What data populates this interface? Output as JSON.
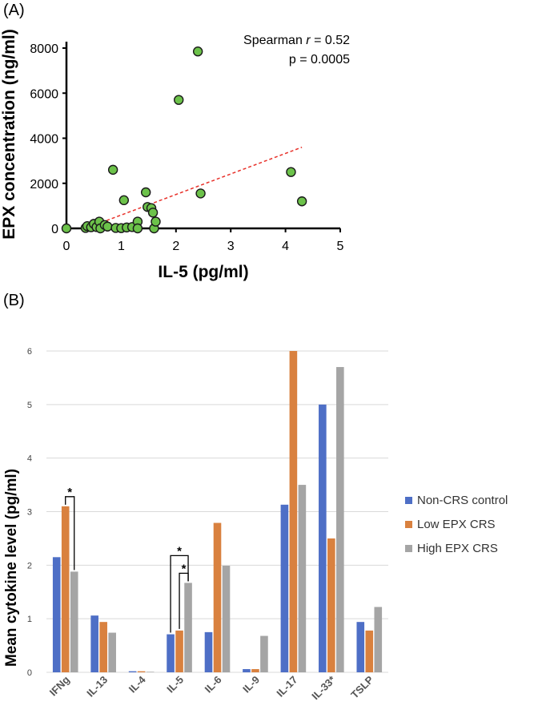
{
  "panels": {
    "a_label": "(A)",
    "b_label": "(B)"
  },
  "chart_data": [
    {
      "type": "scatter",
      "title": "",
      "xlabel": "IL-5 (pg/ml)",
      "ylabel": "EPX concentration (ng/ml)",
      "xlim": [
        0,
        5
      ],
      "ylim": [
        0,
        8000
      ],
      "xticks": [
        0,
        1,
        2,
        3,
        4,
        5
      ],
      "yticks": [
        0,
        2000,
        4000,
        6000,
        8000
      ],
      "marker_color": "#6cc24a",
      "trendline_color": "#e8312a",
      "trendline": {
        "x": [
          0.35,
          4.3
        ],
        "y": [
          0,
          3600
        ]
      },
      "annotation": {
        "line1_prefix": "Spearman ",
        "line1_italic": "r",
        "line1_suffix": " = 0.52",
        "line2": "p = 0.0005"
      },
      "points": [
        {
          "x": 0.0,
          "y": 0
        },
        {
          "x": 0.35,
          "y": 20
        },
        {
          "x": 0.38,
          "y": 100
        },
        {
          "x": 0.45,
          "y": 50
        },
        {
          "x": 0.5,
          "y": 200
        },
        {
          "x": 0.55,
          "y": 60
        },
        {
          "x": 0.6,
          "y": 300
        },
        {
          "x": 0.62,
          "y": 0
        },
        {
          "x": 0.7,
          "y": 150
        },
        {
          "x": 0.75,
          "y": 80
        },
        {
          "x": 0.85,
          "y": 2600
        },
        {
          "x": 0.9,
          "y": 20
        },
        {
          "x": 1.0,
          "y": 10
        },
        {
          "x": 1.05,
          "y": 1250
        },
        {
          "x": 1.1,
          "y": 40
        },
        {
          "x": 1.2,
          "y": 60
        },
        {
          "x": 1.3,
          "y": 300
        },
        {
          "x": 1.3,
          "y": 0
        },
        {
          "x": 1.45,
          "y": 1600
        },
        {
          "x": 1.48,
          "y": 950
        },
        {
          "x": 1.55,
          "y": 900
        },
        {
          "x": 1.58,
          "y": 700
        },
        {
          "x": 1.6,
          "y": 0
        },
        {
          "x": 1.63,
          "y": 300
        },
        {
          "x": 2.05,
          "y": 5700
        },
        {
          "x": 2.4,
          "y": 7850
        },
        {
          "x": 2.45,
          "y": 1550
        },
        {
          "x": 4.1,
          "y": 2500
        },
        {
          "x": 4.3,
          "y": 1200
        }
      ]
    },
    {
      "type": "bar",
      "title": "",
      "xlabel": "",
      "ylabel": "Mean cytokine level (pg/ml)",
      "ylim": [
        0,
        6
      ],
      "yticks": [
        0,
        1,
        2,
        3,
        4,
        5,
        6
      ],
      "grid": true,
      "legend_position": "right",
      "categories": [
        "IFNg",
        "IL-13",
        "IL-4",
        "IL-5",
        "IL-6",
        "IL-9",
        "IL-17",
        "IL-33*",
        "TSLP"
      ],
      "series": [
        {
          "name": "Non-CRS control",
          "color": "#4e6fc6",
          "values": [
            2.15,
            1.06,
            0.02,
            0.71,
            0.75,
            0.06,
            3.13,
            5.0,
            0.94
          ]
        },
        {
          "name": "Low EPX CRS",
          "color": "#d9813f",
          "values": [
            3.1,
            0.94,
            0.02,
            0.78,
            2.79,
            0.06,
            6.0,
            2.5,
            0.78
          ]
        },
        {
          "name": "High EPX CRS",
          "color": "#a5a5a5",
          "values": [
            1.88,
            0.74,
            0.01,
            1.67,
            1.99,
            0.68,
            3.5,
            5.7,
            1.22
          ]
        }
      ],
      "significance": [
        {
          "category": 0,
          "from_series": 1,
          "to_series": 2,
          "label": "*"
        },
        {
          "category": 3,
          "from_series": 0,
          "to_series": 2,
          "label": "*"
        },
        {
          "category": 3,
          "from_series": 1,
          "to_series": 2,
          "label": "*"
        }
      ]
    }
  ]
}
